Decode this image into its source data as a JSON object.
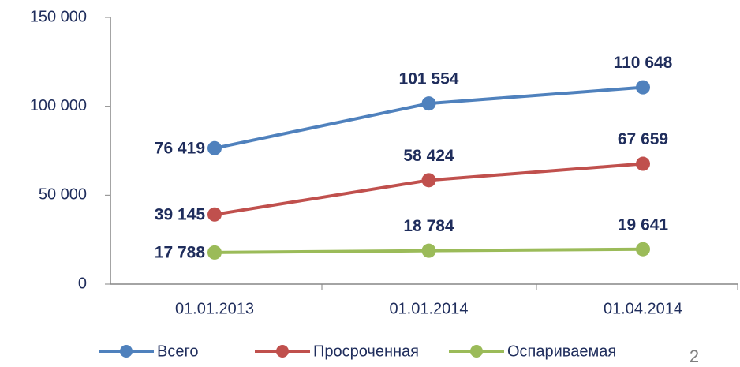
{
  "chart_data": {
    "type": "line",
    "categories": [
      "01.01.2013",
      "01.01.2014",
      "01.04.2014"
    ],
    "series": [
      {
        "name": "Всего",
        "color": "#4f81bd",
        "values": [
          76419,
          101554,
          110648
        ],
        "value_labels": [
          "76 419",
          "101 554",
          "110 648"
        ]
      },
      {
        "name": "Просроченная",
        "color": "#c0504d",
        "values": [
          39145,
          58424,
          67659
        ],
        "value_labels": [
          "39 145",
          "58 424",
          "67 659"
        ]
      },
      {
        "name": "Оспариваемая",
        "color": "#9bbb59",
        "values": [
          17788,
          18784,
          19641
        ],
        "value_labels": [
          "17 788",
          "18 784",
          "19 641"
        ]
      }
    ],
    "ylim": [
      0,
      150000
    ],
    "yticks": [
      0,
      {
        "value": 50000,
        "label": "50 000"
      },
      {
        "value": 100000,
        "label": "100 000"
      },
      {
        "value": 150000,
        "label": "150 000"
      }
    ],
    "grid": false,
    "legend": "bottom"
  },
  "page_number": "2"
}
